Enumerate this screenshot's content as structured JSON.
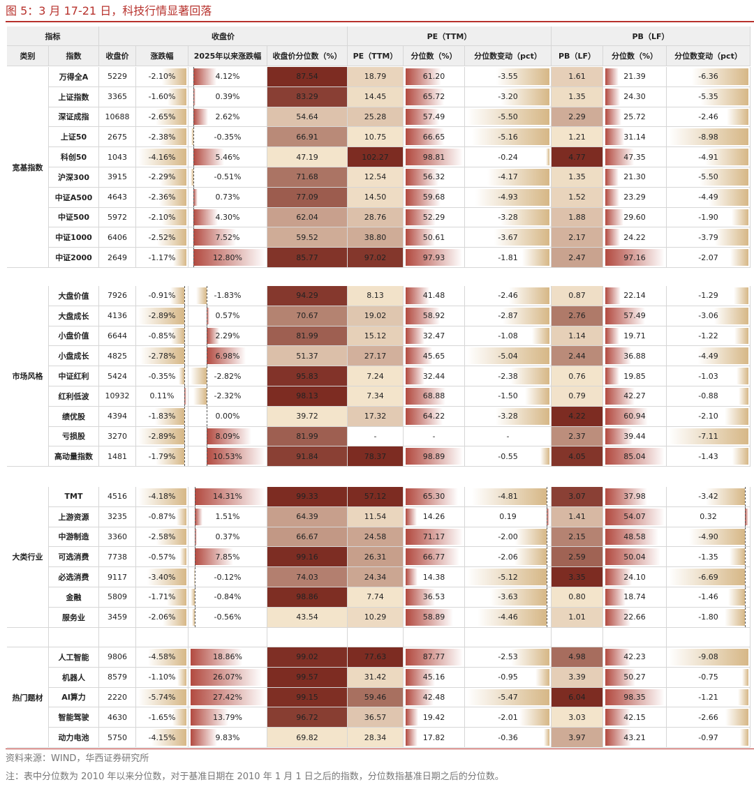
{
  "title": "图 5：3 月 17-21 日，科技行情显著回落",
  "header": {
    "groups": [
      "指标",
      "收盘价",
      "PE（TTM）",
      "PB（LF）"
    ],
    "columns": [
      "类别",
      "指数",
      "收盘价",
      "涨跌幅",
      "2025年以来涨跌幅",
      "收盘价分位数（%）",
      "PE（TTM）",
      "分位数（%）",
      "分位数变动（pct）",
      "PB（LF）",
      "分位数（%）",
      "分位数变动（pct）"
    ]
  },
  "sections": [
    {
      "category": "宽基指数",
      "rows": [
        [
          "万得全A",
          "5229",
          "-2.10%",
          "4.12%",
          "87.54",
          "18.79",
          "61.20",
          "-3.55",
          "1.61",
          "21.39",
          "-6.36"
        ],
        [
          "上证指数",
          "3365",
          "-1.60%",
          "0.39%",
          "83.29",
          "14.45",
          "65.72",
          "-3.20",
          "1.35",
          "24.30",
          "-5.35"
        ],
        [
          "深证成指",
          "10688",
          "-2.65%",
          "2.62%",
          "54.64",
          "25.28",
          "57.49",
          "-5.50",
          "2.29",
          "25.72",
          "-2.46"
        ],
        [
          "上证50",
          "2675",
          "-2.38%",
          "-0.35%",
          "66.91",
          "10.75",
          "66.65",
          "-5.16",
          "1.21",
          "31.14",
          "-8.98"
        ],
        [
          "科创50",
          "1043",
          "-4.16%",
          "5.46%",
          "47.19",
          "102.27",
          "98.81",
          "-0.24",
          "4.77",
          "47.35",
          "-4.91"
        ],
        [
          "沪深300",
          "3915",
          "-2.29%",
          "-0.51%",
          "71.68",
          "12.54",
          "56.32",
          "-4.17",
          "1.35",
          "21.30",
          "-5.50"
        ],
        [
          "中证A500",
          "4643",
          "-2.36%",
          "0.73%",
          "77.09",
          "14.50",
          "59.68",
          "-4.93",
          "1.52",
          "23.29",
          "-4.49"
        ],
        [
          "中证500",
          "5972",
          "-2.10%",
          "4.30%",
          "62.04",
          "28.76",
          "52.29",
          "-3.28",
          "1.88",
          "29.60",
          "-1.90"
        ],
        [
          "中证1000",
          "6406",
          "-2.52%",
          "7.52%",
          "59.52",
          "38.80",
          "50.61",
          "-3.67",
          "2.17",
          "24.22",
          "-3.79"
        ],
        [
          "中证2000",
          "2649",
          "-1.17%",
          "12.80%",
          "85.77",
          "97.02",
          "97.93",
          "-1.81",
          "2.47",
          "97.16",
          "-2.07"
        ]
      ]
    },
    {
      "category": "市场风格",
      "rows": [
        [
          "大盘价值",
          "7926",
          "-0.91%",
          "-1.83%",
          "94.29",
          "8.13",
          "41.48",
          "-2.46",
          "0.87",
          "22.14",
          "-1.29"
        ],
        [
          "大盘成长",
          "4136",
          "-2.89%",
          "0.57%",
          "70.67",
          "19.02",
          "58.92",
          "-2.87",
          "2.76",
          "57.49",
          "-3.06"
        ],
        [
          "小盘价值",
          "6644",
          "-0.85%",
          "2.29%",
          "81.99",
          "15.12",
          "32.47",
          "-1.08",
          "1.14",
          "19.71",
          "-1.22"
        ],
        [
          "小盘成长",
          "4825",
          "-2.78%",
          "6.98%",
          "51.37",
          "27.17",
          "45.65",
          "-5.04",
          "2.44",
          "36.88",
          "-4.49"
        ],
        [
          "中证红利",
          "5424",
          "-0.35%",
          "-2.82%",
          "95.83",
          "7.24",
          "32.44",
          "-2.38",
          "0.76",
          "19.85",
          "-1.03"
        ],
        [
          "红利低波",
          "10932",
          "0.11%",
          "-2.32%",
          "98.13",
          "7.34",
          "68.88",
          "-1.50",
          "0.79",
          "42.27",
          "-0.88"
        ],
        [
          "绩优股",
          "4394",
          "-1.83%",
          "0.00%",
          "39.72",
          "17.32",
          "64.22",
          "-3.28",
          "4.22",
          "60.94",
          "-2.10"
        ],
        [
          "亏损股",
          "3270",
          "-2.89%",
          "8.09%",
          "81.99",
          "-",
          "-",
          "-",
          "2.37",
          "39.44",
          "-7.11"
        ],
        [
          "高动量指数",
          "1481",
          "-1.79%",
          "10.53%",
          "91.84",
          "78.37",
          "98.89",
          "-0.55",
          "4.05",
          "85.04",
          "-1.43"
        ]
      ]
    },
    {
      "category": "大类行业",
      "rows": [
        [
          "TMT",
          "4516",
          "-4.18%",
          "14.31%",
          "99.33",
          "57.12",
          "65.30",
          "-4.81",
          "3.07",
          "37.98",
          "-3.42"
        ],
        [
          "上游资源",
          "3235",
          "-0.87%",
          "1.51%",
          "64.39",
          "11.54",
          "14.26",
          "0.19",
          "1.41",
          "54.07",
          "0.32"
        ],
        [
          "中游制造",
          "3360",
          "-2.58%",
          "0.37%",
          "66.67",
          "24.58",
          "71.17",
          "-2.00",
          "2.15",
          "48.58",
          "-4.90"
        ],
        [
          "可选消费",
          "7738",
          "-0.57%",
          "7.85%",
          "99.16",
          "26.31",
          "66.77",
          "-2.06",
          "2.59",
          "50.04",
          "-1.35"
        ],
        [
          "必选消费",
          "9117",
          "-3.40%",
          "-0.12%",
          "74.03",
          "24.34",
          "14.38",
          "-5.12",
          "3.35",
          "24.10",
          "-6.69"
        ],
        [
          "金融",
          "5809",
          "-1.71%",
          "-0.84%",
          "98.86",
          "7.74",
          "36.53",
          "-3.63",
          "0.80",
          "18.74",
          "-1.46"
        ],
        [
          "服务业",
          "3459",
          "-2.06%",
          "-0.56%",
          "43.54",
          "10.29",
          "58.89",
          "-4.46",
          "1.01",
          "22.66",
          "-1.80"
        ]
      ]
    },
    {
      "category": "热门题材",
      "rows": [
        [
          "人工智能",
          "9806",
          "-4.58%",
          "18.86%",
          "99.02",
          "77.63",
          "87.77",
          "-2.53",
          "4.98",
          "42.23",
          "-9.08"
        ],
        [
          "机器人",
          "8579",
          "-1.10%",
          "26.07%",
          "99.57",
          "31.42",
          "45.16",
          "-0.95",
          "3.39",
          "50.27",
          "-0.75"
        ],
        [
          "AI算力",
          "2220",
          "-5.74%",
          "27.42%",
          "99.15",
          "59.46",
          "42.48",
          "-5.47",
          "6.04",
          "98.35",
          "-1.21"
        ],
        [
          "智能驾驶",
          "4630",
          "-1.65%",
          "13.79%",
          "96.72",
          "36.57",
          "19.42",
          "-2.01",
          "3.03",
          "42.15",
          "-2.66"
        ],
        [
          "动力电池",
          "5750",
          "-4.15%",
          "9.83%",
          "69.82",
          "28.34",
          "17.82",
          "-0.36",
          "3.97",
          "43.21",
          "-0.97"
        ]
      ]
    }
  ],
  "source": "资料来源：WIND，华西证券研究所",
  "note": "注：表中分位数为 2010 年以来分位数，对于基准日期在 2010 年 1 月 1 日之后的指数，分位数指基准日期之后的分位数。"
}
